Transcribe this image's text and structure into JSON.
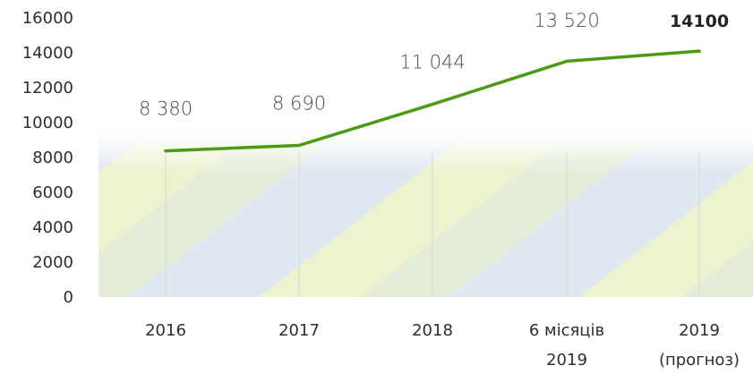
{
  "chart_data": {
    "type": "line",
    "categories": [
      "2016",
      "2017",
      "2018",
      "6 місяців 2019",
      "2019 (прогноз)"
    ],
    "category_lines": [
      [
        "2016"
      ],
      [
        "2017"
      ],
      [
        "2018"
      ],
      [
        "6 місяців",
        "2019"
      ],
      [
        "2019",
        "(прогноз)"
      ]
    ],
    "series": [
      {
        "values": [
          8380,
          8690,
          11044,
          13520,
          14100
        ]
      }
    ],
    "data_labels": [
      "8 380",
      "8 690",
      "11 044",
      "13 520",
      "14100"
    ],
    "emphasized_label_index": 4,
    "yticks": [
      0,
      2000,
      4000,
      6000,
      8000,
      10000,
      12000,
      14000,
      16000
    ],
    "ylim": [
      0,
      16000
    ],
    "grid": "vertical",
    "colors": {
      "line": "#4a9a12",
      "background_band_top": "#f4f7fb",
      "background_band_yellow": "#eef3d2",
      "background_band_green": "#e3eed9",
      "background_band_blue": "#dde6f0"
    }
  }
}
